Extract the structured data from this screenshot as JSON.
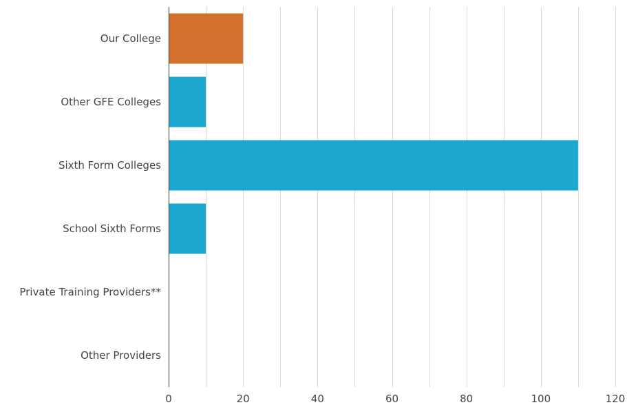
{
  "chart_data": {
    "type": "bar",
    "orientation": "horizontal",
    "categories": [
      "Our College",
      "Other GFE Colleges",
      "Sixth Form Colleges",
      "School Sixth Forms",
      "Private Training Providers**",
      "Other Providers"
    ],
    "values": [
      20,
      10,
      110,
      10,
      0,
      0
    ],
    "bar_colors": [
      "#d4732f",
      "#1da9cf",
      "#1da9cf",
      "#1da9cf",
      "#1da9cf",
      "#1da9cf"
    ],
    "xlim": [
      0,
      120
    ],
    "x_ticks": [
      0,
      20,
      40,
      60,
      80,
      100,
      120
    ],
    "grid": "vertical",
    "gridline_color": "#d9d9d9",
    "axis_color": "#333333",
    "title": "",
    "xlabel": "",
    "ylabel": ""
  }
}
